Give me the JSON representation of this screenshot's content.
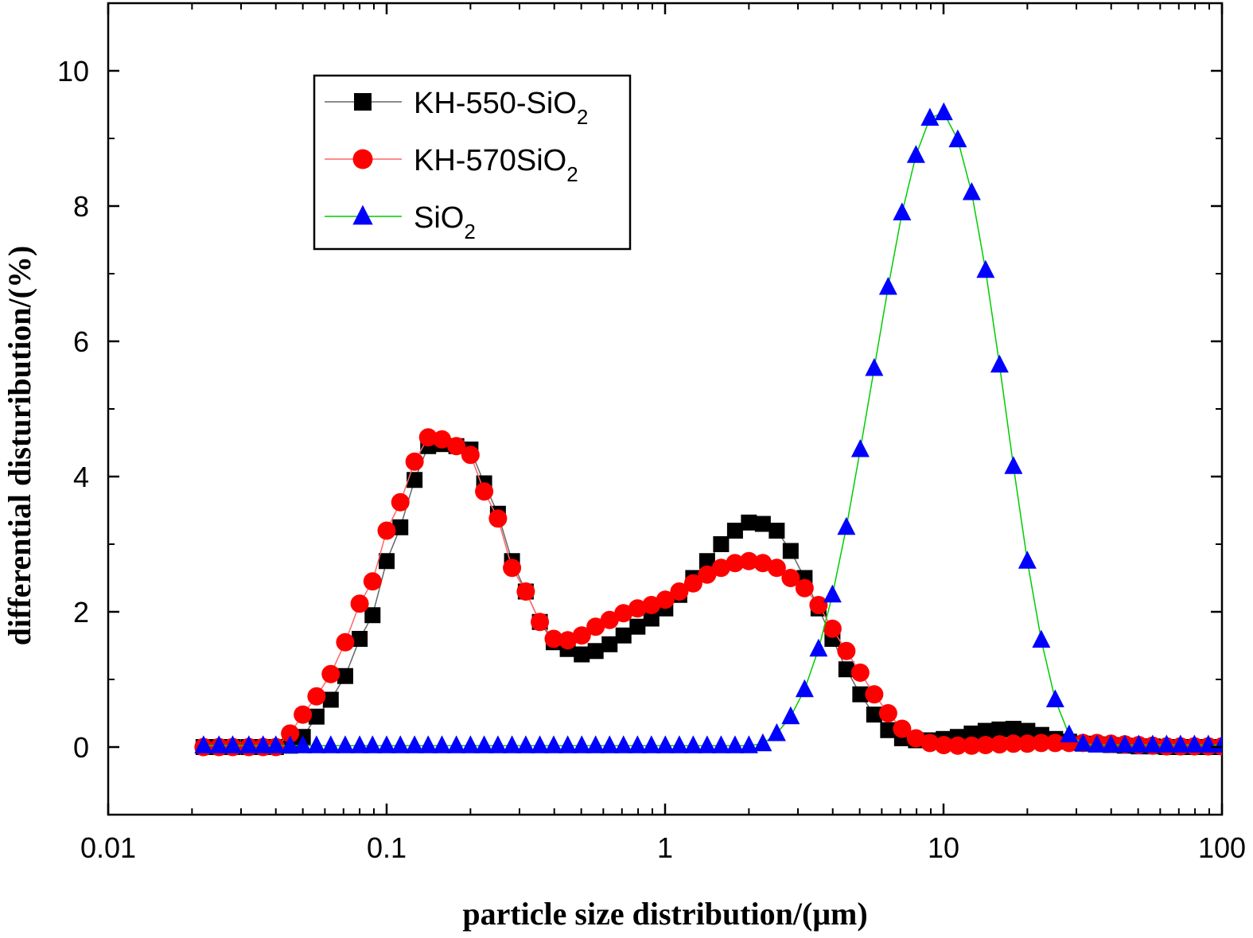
{
  "chart_data": {
    "type": "scatter",
    "xlabel": "particle size distribution/(μm)",
    "ylabel": "differential disturibution/(%)",
    "x_scale": "log",
    "xlim": [
      0.01,
      100
    ],
    "ylim": [
      -1,
      11
    ],
    "x_ticks": [
      "0.01",
      "0.1",
      "1",
      "10",
      "100"
    ],
    "y_ticks": [
      "0",
      "2",
      "4",
      "6",
      "8",
      "10"
    ],
    "legend_position": "top-left",
    "legend_items": [
      {
        "base": "KH-550-SiO",
        "sub": "2"
      },
      {
        "base": "KH-570SiO",
        "sub": "2"
      },
      {
        "base": "SiO",
        "sub": "2"
      }
    ],
    "series": [
      {
        "name": "KH-550-SiO2",
        "marker": "square",
        "color": "#000000",
        "line_color": "#666666",
        "x": [
          0.022,
          0.025,
          0.028,
          0.032,
          0.036,
          0.04,
          0.045,
          0.05,
          0.056,
          0.063,
          0.071,
          0.08,
          0.089,
          0.1,
          0.112,
          0.126,
          0.141,
          0.158,
          0.178,
          0.2,
          0.224,
          0.251,
          0.282,
          0.316,
          0.355,
          0.398,
          0.447,
          0.502,
          0.563,
          0.632,
          0.709,
          0.796,
          0.893,
          1.002,
          1.125,
          1.262,
          1.416,
          1.589,
          1.783,
          2.0,
          2.244,
          2.518,
          2.825,
          3.17,
          3.557,
          3.991,
          4.478,
          5.024,
          5.637,
          6.325,
          7.096,
          7.962,
          8.934,
          10.02,
          11.25,
          12.62,
          14.16,
          15.89,
          17.83,
          20.0,
          22.44,
          25.18,
          28.25,
          31.7,
          35.57,
          39.91,
          44.78,
          50.24,
          56.37,
          63.25,
          70.96,
          79.62,
          89.34,
          100.0
        ],
        "y": [
          0.0,
          0.0,
          0.0,
          0.0,
          0.0,
          0.0,
          0.02,
          0.15,
          0.45,
          0.7,
          1.05,
          1.6,
          1.95,
          2.75,
          3.25,
          3.95,
          4.45,
          4.48,
          4.45,
          4.4,
          3.9,
          3.45,
          2.75,
          2.3,
          1.85,
          1.55,
          1.45,
          1.37,
          1.42,
          1.52,
          1.65,
          1.78,
          1.9,
          2.05,
          2.25,
          2.5,
          2.75,
          3.0,
          3.2,
          3.32,
          3.3,
          3.2,
          2.9,
          2.5,
          2.05,
          1.6,
          1.15,
          0.78,
          0.48,
          0.25,
          0.13,
          0.1,
          0.1,
          0.12,
          0.15,
          0.2,
          0.24,
          0.26,
          0.27,
          0.24,
          0.18,
          0.12,
          0.08,
          0.05,
          0.04,
          0.03,
          0.02,
          0.01,
          0.01,
          0.0,
          0.0,
          0.0,
          0.0,
          0.0
        ]
      },
      {
        "name": "KH-570SiO2",
        "marker": "circle",
        "color": "#ff0000",
        "line_color": "#ff6666",
        "x": [
          0.022,
          0.025,
          0.028,
          0.032,
          0.036,
          0.04,
          0.045,
          0.05,
          0.056,
          0.063,
          0.071,
          0.08,
          0.089,
          0.1,
          0.112,
          0.126,
          0.141,
          0.158,
          0.178,
          0.2,
          0.224,
          0.251,
          0.282,
          0.316,
          0.355,
          0.398,
          0.447,
          0.502,
          0.563,
          0.632,
          0.709,
          0.796,
          0.893,
          1.002,
          1.125,
          1.262,
          1.416,
          1.589,
          1.783,
          2.0,
          2.244,
          2.518,
          2.825,
          3.17,
          3.557,
          3.991,
          4.478,
          5.024,
          5.637,
          6.325,
          7.096,
          7.962,
          8.934,
          10.02,
          11.25,
          12.62,
          14.16,
          15.89,
          17.83,
          20.0,
          22.44,
          25.18,
          28.25,
          31.7,
          35.57,
          39.91,
          44.78,
          50.24,
          56.37,
          63.25,
          70.96,
          79.62,
          89.34,
          100.0
        ],
        "y": [
          0.0,
          0.0,
          0.0,
          0.0,
          0.0,
          0.0,
          0.2,
          0.48,
          0.75,
          1.08,
          1.55,
          2.12,
          2.45,
          3.2,
          3.62,
          4.22,
          4.58,
          4.55,
          4.45,
          4.32,
          3.78,
          3.38,
          2.65,
          2.3,
          1.85,
          1.6,
          1.58,
          1.65,
          1.78,
          1.88,
          1.98,
          2.05,
          2.1,
          2.18,
          2.3,
          2.42,
          2.55,
          2.65,
          2.72,
          2.75,
          2.72,
          2.65,
          2.5,
          2.35,
          2.1,
          1.75,
          1.42,
          1.1,
          0.78,
          0.5,
          0.27,
          0.13,
          0.06,
          0.03,
          0.02,
          0.02,
          0.03,
          0.04,
          0.05,
          0.05,
          0.06,
          0.06,
          0.06,
          0.06,
          0.06,
          0.05,
          0.04,
          0.03,
          0.02,
          0.01,
          0.01,
          0.01,
          0.01,
          0.01
        ]
      },
      {
        "name": "SiO2",
        "marker": "triangle",
        "color": "#0000ff",
        "line_color": "#00cc00",
        "x": [
          0.022,
          0.025,
          0.028,
          0.032,
          0.036,
          0.04,
          0.045,
          0.05,
          0.056,
          0.063,
          0.071,
          0.08,
          0.089,
          0.1,
          0.112,
          0.126,
          0.141,
          0.158,
          0.178,
          0.2,
          0.224,
          0.251,
          0.282,
          0.316,
          0.355,
          0.398,
          0.447,
          0.502,
          0.563,
          0.632,
          0.709,
          0.796,
          0.893,
          1.002,
          1.125,
          1.262,
          1.416,
          1.589,
          1.783,
          2.0,
          2.244,
          2.518,
          2.825,
          3.17,
          3.557,
          3.991,
          4.478,
          5.024,
          5.637,
          6.325,
          7.096,
          7.962,
          8.934,
          10.02,
          11.25,
          12.62,
          14.16,
          15.89,
          17.83,
          20.0,
          22.44,
          25.18,
          28.25,
          31.7,
          35.57,
          39.91,
          44.78,
          50.24,
          56.37,
          63.25,
          70.96,
          79.62,
          89.34,
          100.0
        ],
        "y": [
          0.02,
          0.02,
          0.02,
          0.02,
          0.02,
          0.02,
          0.02,
          0.02,
          0.02,
          0.02,
          0.02,
          0.02,
          0.02,
          0.02,
          0.02,
          0.02,
          0.02,
          0.02,
          0.02,
          0.02,
          0.02,
          0.02,
          0.02,
          0.02,
          0.02,
          0.02,
          0.02,
          0.02,
          0.02,
          0.02,
          0.02,
          0.02,
          0.02,
          0.02,
          0.02,
          0.02,
          0.02,
          0.02,
          0.02,
          0.02,
          0.05,
          0.2,
          0.45,
          0.85,
          1.45,
          2.25,
          3.25,
          4.4,
          5.6,
          6.8,
          7.9,
          8.75,
          9.3,
          9.38,
          8.98,
          8.2,
          7.05,
          5.65,
          4.15,
          2.75,
          1.58,
          0.7,
          0.18,
          0.05,
          0.03,
          0.03,
          0.03,
          0.03,
          0.03,
          0.03,
          0.03,
          0.03,
          0.03,
          0.03
        ]
      }
    ]
  }
}
